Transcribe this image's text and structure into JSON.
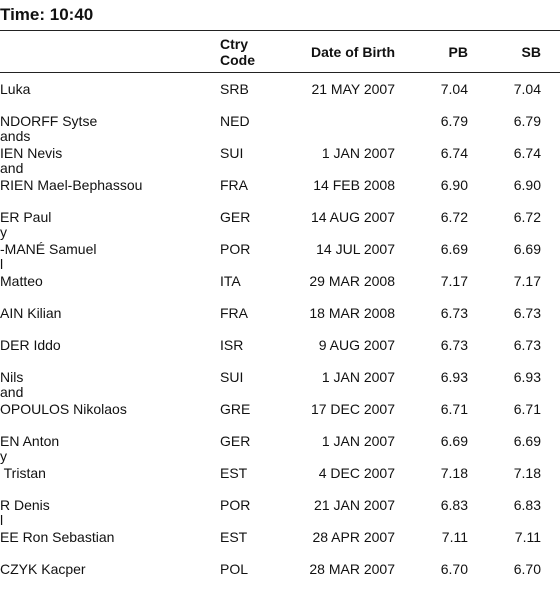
{
  "header": {
    "title": "Time: 10:40"
  },
  "table": {
    "columns": {
      "code": [
        "Ctry",
        "Code"
      ],
      "dob": "Date of Birth",
      "pb": "PB",
      "sb": "SB"
    },
    "rows": [
      {
        "name": "Luka",
        "code": "SRB",
        "dob": "21 MAY 2007",
        "pb": "7.04",
        "sb": "7.04"
      },
      {
        "name": "NDORFF Sytse",
        "sub": "ands",
        "code": "NED",
        "pb": "6.79",
        "sb": "6.79"
      },
      {
        "name": "IEN Nevis",
        "sub": "and",
        "code": "SUI",
        "dob": "1 JAN 2007",
        "pb": "6.74",
        "sb": "6.74"
      },
      {
        "name": "RIEN Mael-Bephassou",
        "code": "FRA",
        "dob": "14 FEB 2008",
        "pb": "6.90",
        "sb": "6.90"
      },
      {
        "name": "ER Paul",
        "sub": "y",
        "code": "GER",
        "dob": "14 AUG 2007",
        "pb": "6.72",
        "sb": "6.72"
      },
      {
        "name": "-MANÉ Samuel",
        "sub": "l",
        "code": "POR",
        "dob": "14 JUL 2007",
        "pb": "6.69",
        "sb": "6.69"
      },
      {
        "name": "Matteo",
        "code": "ITA",
        "dob": "29 MAR 2008",
        "pb": "7.17",
        "sb": "7.17"
      },
      {
        "name": "AIN Kilian",
        "code": "FRA",
        "dob": "18 MAR 2008",
        "pb": "6.73",
        "sb": "6.73"
      },
      {
        "name": "DER Iddo",
        "code": "ISR",
        "dob": "9 AUG 2007",
        "pb": "6.73",
        "sb": "6.73"
      },
      {
        "name": "Nils",
        "sub": "and",
        "code": "SUI",
        "dob": "1 JAN 2007",
        "pb": "6.93",
        "sb": "6.93"
      },
      {
        "name": "OPOULOS Nikolaos",
        "code": "GRE",
        "dob": "17 DEC 2007",
        "pb": "6.71",
        "sb": "6.71"
      },
      {
        "name": "EN Anton",
        "sub": "y",
        "code": "GER",
        "dob": "1 JAN 2007",
        "pb": "6.69",
        "sb": "6.69"
      },
      {
        "name": " Tristan",
        "code": "EST",
        "dob": "4 DEC 2007",
        "pb": "7.18",
        "sb": "7.18"
      },
      {
        "name": "R Denis",
        "sub": "l",
        "code": "POR",
        "dob": "21 JAN 2007",
        "pb": "6.83",
        "sb": "6.83"
      },
      {
        "name": "EE Ron Sebastian",
        "code": "EST",
        "dob": "28 APR 2007",
        "pb": "7.11",
        "sb": "7.11"
      },
      {
        "name": "CZYK Kacper",
        "code": "POL",
        "dob": "28 MAR 2007",
        "pb": "6.70",
        "sb": "6.70"
      }
    ]
  }
}
